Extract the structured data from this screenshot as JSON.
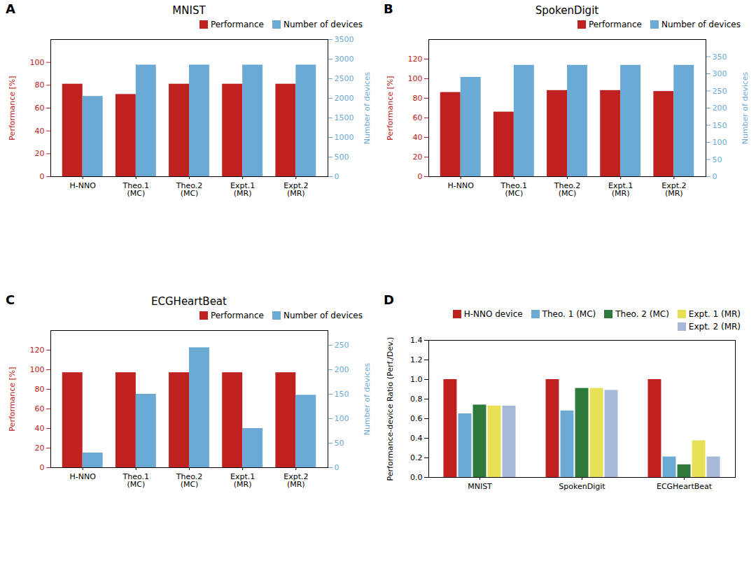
{
  "chart_data": [
    {
      "type": "bar",
      "title": "MNIST",
      "annotations": [
        "A"
      ],
      "categories": [
        "H-NNO",
        "Theo.1\n(MC)",
        "Theo.2\n(MC)",
        "Expt.1\n(MR)",
        "Expt.2\n(MR)"
      ],
      "series": [
        {
          "name": "Performance",
          "color": "#BF2020",
          "values": [
            81,
            72,
            81,
            81,
            81
          ]
        },
        {
          "name": "Number of devices",
          "color": "#6AAAD4",
          "values": [
            2050,
            2850,
            2850,
            2850,
            2850
          ],
          "axis": "y2"
        }
      ],
      "ylabel": "Performance [%]",
      "y2label": "Number of devices",
      "ylim": [
        0,
        120
      ],
      "yticks": [
        0,
        20,
        40,
        60,
        80,
        100
      ],
      "y2lim": [
        0,
        3500
      ],
      "y2ticks": [
        0,
        500,
        1000,
        1500,
        2000,
        2500,
        3000,
        3500
      ],
      "legend": "upper right",
      "grid": false
    },
    {
      "type": "bar",
      "title": "SpokenDigit",
      "annotations": [
        "B"
      ],
      "categories": [
        "H-NNO",
        "Theo.1\n(MC)",
        "Theo.2\n(MC)",
        "Expt.1\n(MR)",
        "Expt.2\n(MR)"
      ],
      "series": [
        {
          "name": "Performance",
          "color": "#BF2020",
          "values": [
            86,
            66,
            88,
            88,
            87
          ]
        },
        {
          "name": "Number of devices",
          "color": "#6AAAD4",
          "values": [
            290,
            325,
            325,
            325,
            325
          ],
          "axis": "y2"
        }
      ],
      "ylabel": "Performance [%]",
      "y2label": "Number of devices",
      "ylim": [
        0,
        140
      ],
      "yticks": [
        0,
        20,
        40,
        60,
        80,
        100,
        120
      ],
      "y2lim": [
        0,
        400
      ],
      "y2ticks": [
        0,
        50,
        100,
        150,
        200,
        250,
        300,
        350
      ],
      "legend": "upper right",
      "grid": false
    },
    {
      "type": "bar",
      "title": "ECGHeartBeat",
      "annotations": [
        "C"
      ],
      "categories": [
        "H-NNO",
        "Theo.1\n(MC)",
        "Theo.2\n(MC)",
        "Expt.1\n(MR)",
        "Expt.2\n(MR)"
      ],
      "series": [
        {
          "name": "Performance",
          "color": "#BF2020",
          "values": [
            97,
            97,
            97,
            97,
            97
          ]
        },
        {
          "name": "Number of devices",
          "color": "#6AAAD4",
          "values": [
            30,
            150,
            245,
            80,
            148
          ],
          "axis": "y2"
        }
      ],
      "ylabel": "Performance [%]",
      "y2label": "Number of devices",
      "ylim": [
        0,
        140
      ],
      "yticks": [
        0,
        20,
        40,
        60,
        80,
        100,
        120
      ],
      "y2lim": [
        0,
        280
      ],
      "y2ticks": [
        0,
        50,
        100,
        150,
        200,
        250
      ],
      "legend": "upper right",
      "grid": false
    },
    {
      "type": "bar",
      "annotations": [
        "D"
      ],
      "categories": [
        "MNIST",
        "SpokenDigit",
        "ECGHeartBeat"
      ],
      "series": [
        {
          "name": "H-NNO device",
          "color": "#BF2020",
          "values": [
            1.0,
            1.0,
            1.0
          ]
        },
        {
          "name": "Theo. 1 (MC)",
          "color": "#6AAAD4",
          "values": [
            0.65,
            0.68,
            0.21
          ]
        },
        {
          "name": "Theo. 2 (MC)",
          "color": "#2D7A3A",
          "values": [
            0.74,
            0.91,
            0.13
          ]
        },
        {
          "name": "Expt. 1 (MR)",
          "color": "#E8E055",
          "values": [
            0.73,
            0.91,
            0.375
          ]
        },
        {
          "name": "Expt. 2 (MR)",
          "color": "#A8B8D8",
          "values": [
            0.73,
            0.89,
            0.21
          ]
        }
      ],
      "ylabel": "Performance-device Ratio (Perf./Dev.)",
      "ylim": [
        0,
        1.4
      ],
      "yticks": [
        {
          "value": 0,
          "label": "0.0"
        },
        0.2,
        0.4,
        0.6,
        0.8,
        {
          "value": 1,
          "label": "1.0"
        },
        1.2,
        1.4
      ],
      "legend": "upper right",
      "grid": false
    }
  ]
}
